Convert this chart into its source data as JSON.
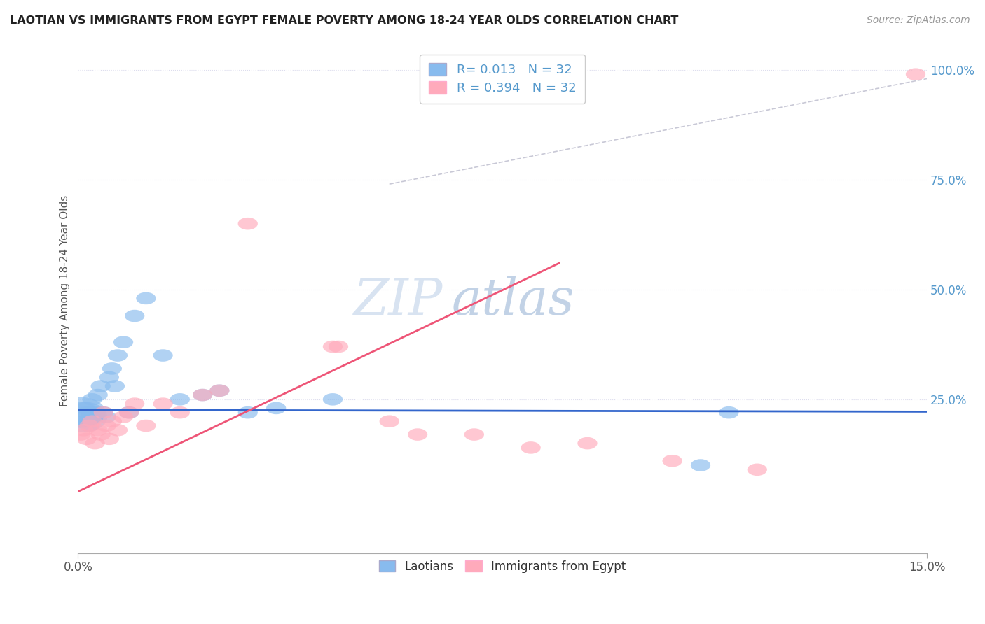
{
  "title": "LAOTIAN VS IMMIGRANTS FROM EGYPT FEMALE POVERTY AMONG 18-24 YEAR OLDS CORRELATION CHART",
  "source": "Source: ZipAtlas.com",
  "ylabel": "Female Poverty Among 18-24 Year Olds",
  "blue_color": "#88BBEE",
  "pink_color": "#FFAABB",
  "blue_line_color": "#3366CC",
  "pink_line_color": "#EE5577",
  "diag_line_color": "#BBBBCC",
  "grid_color": "#DDDDEE",
  "ytick_color": "#5599CC",
  "watermark_color": "#CCDDF0",
  "laotian_x": [
    0.05,
    0.08,
    0.1,
    0.12,
    0.15,
    0.18,
    0.2,
    0.22,
    0.25,
    0.28,
    0.3,
    0.35,
    0.4,
    0.45,
    0.5,
    0.55,
    0.6,
    0.65,
    0.7,
    0.8,
    0.9,
    1.0,
    1.2,
    1.5,
    1.8,
    2.2,
    2.5,
    3.0,
    3.5,
    4.5,
    11.0,
    11.5
  ],
  "laotian_y": [
    0.22,
    0.21,
    0.2,
    0.23,
    0.22,
    0.2,
    0.19,
    0.22,
    0.25,
    0.21,
    0.22,
    0.26,
    0.28,
    0.22,
    0.21,
    0.3,
    0.32,
    0.28,
    0.35,
    0.38,
    0.22,
    0.44,
    0.48,
    0.35,
    0.25,
    0.26,
    0.27,
    0.22,
    0.23,
    0.25,
    0.1,
    0.22
  ],
  "egypt_x": [
    0.05,
    0.1,
    0.15,
    0.2,
    0.25,
    0.3,
    0.35,
    0.4,
    0.45,
    0.5,
    0.55,
    0.6,
    0.7,
    0.8,
    0.9,
    1.0,
    1.2,
    1.5,
    1.8,
    2.2,
    2.5,
    3.0,
    4.5,
    4.6,
    5.5,
    6.0,
    7.0,
    8.0,
    9.0,
    10.5,
    12.0,
    14.8
  ],
  "egypt_y": [
    0.17,
    0.18,
    0.16,
    0.19,
    0.2,
    0.15,
    0.18,
    0.17,
    0.22,
    0.19,
    0.16,
    0.2,
    0.18,
    0.21,
    0.22,
    0.24,
    0.19,
    0.24,
    0.22,
    0.26,
    0.27,
    0.65,
    0.37,
    0.37,
    0.2,
    0.17,
    0.17,
    0.14,
    0.15,
    0.11,
    0.09,
    0.99
  ],
  "blue_line_x": [
    0.0,
    15.0
  ],
  "blue_line_y": [
    0.226,
    0.222
  ],
  "pink_line_x": [
    0.0,
    8.5
  ],
  "pink_line_y": [
    0.04,
    0.56
  ],
  "diag_line_x": [
    5.5,
    15.0
  ],
  "diag_line_y": [
    0.74,
    0.98
  ],
  "xlim": [
    0,
    15.0
  ],
  "ylim": [
    -0.1,
    1.05
  ],
  "yticks": [
    0.0,
    0.25,
    0.5,
    0.75,
    1.0
  ],
  "ytick_labels": [
    "",
    "25.0%",
    "50.0%",
    "75.0%",
    "100.0%"
  ],
  "xtick_labels": [
    "0.0%",
    "15.0%"
  ],
  "legend1_r": "R = 0.013",
  "legend1_n": "N = 32",
  "legend2_r": "R = 0.394",
  "legend2_n": "N = 32",
  "bottom_legend1": "Laotians",
  "bottom_legend2": "Immigrants from Egypt"
}
